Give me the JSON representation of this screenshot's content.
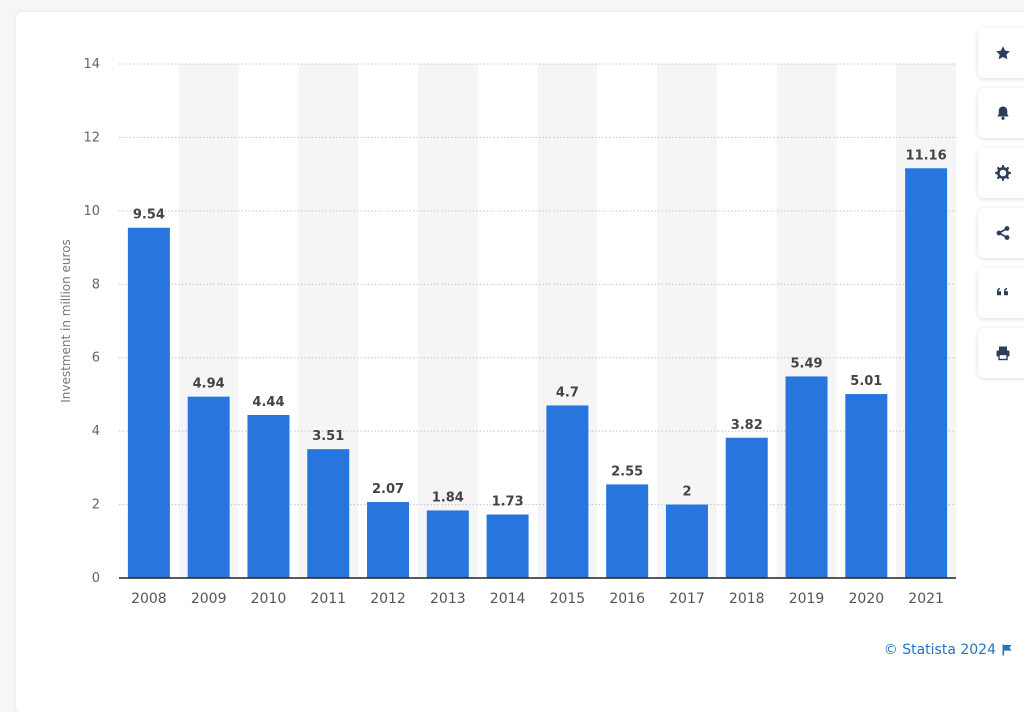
{
  "chart_data": {
    "type": "bar",
    "title": "",
    "xlabel": "",
    "ylabel": "Investment in million euros",
    "ylim": [
      0,
      14
    ],
    "yticks": [
      0,
      2,
      4,
      6,
      8,
      10,
      12,
      14
    ],
    "grid": true,
    "categories": [
      "2008",
      "2009",
      "2010",
      "2011",
      "2012",
      "2013",
      "2014",
      "2015",
      "2016",
      "2017",
      "2018",
      "2019",
      "2020",
      "2021"
    ],
    "values": [
      9.54,
      4.94,
      4.44,
      3.51,
      2.07,
      1.84,
      1.73,
      4.7,
      2.55,
      2,
      3.82,
      5.49,
      5.01,
      11.16
    ],
    "value_labels": [
      "9.54",
      "4.94",
      "4.44",
      "3.51",
      "2.07",
      "1.84",
      "1.73",
      "4.7",
      "2.55",
      "2",
      "3.82",
      "5.49",
      "5.01",
      "11.16"
    ],
    "bar_color": "#2876dd",
    "stripe_color": "#f5f5f5"
  },
  "toolbar": {
    "buttons": [
      {
        "name": "favorite",
        "icon": "star-icon"
      },
      {
        "name": "notification",
        "icon": "bell-icon"
      },
      {
        "name": "settings",
        "icon": "gear-icon"
      },
      {
        "name": "share",
        "icon": "share-icon"
      },
      {
        "name": "cite",
        "icon": "quote-icon"
      },
      {
        "name": "print",
        "icon": "printer-icon"
      }
    ],
    "icon_color": "#2d3e5a"
  },
  "footer": {
    "credit": "© Statista 2024",
    "color": "#2373c2"
  }
}
